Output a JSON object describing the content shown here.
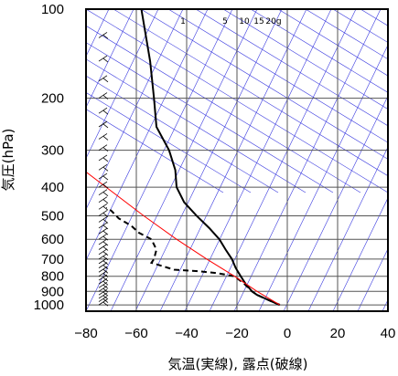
{
  "chart_data": {
    "type": "line",
    "subtype": "skew-t log-p sounding diagram",
    "xlabel": "気温(実線), 露点(破線)",
    "ylabel": "気圧(hPa)",
    "xlim": [
      -80,
      40
    ],
    "ylim": [
      1050,
      100
    ],
    "yscale": "log",
    "x_ticks": [
      "−80",
      "−60",
      "−40",
      "−20",
      "0",
      "20",
      "40"
    ],
    "x_tick_values": [
      -80,
      -60,
      -40,
      -20,
      0,
      20,
      40
    ],
    "y_ticks": [
      "100",
      "200",
      "300",
      "400",
      "500",
      "600",
      "700",
      "800",
      "900",
      "1000"
    ],
    "y_tick_values": [
      100,
      200,
      300,
      400,
      500,
      600,
      700,
      800,
      900,
      1000
    ],
    "grid": true,
    "mixing_ratio_labels": [
      "1",
      "5",
      "10",
      "15",
      "20g"
    ],
    "series": [
      {
        "style": "solid",
        "color": "#000000",
        "points": [
          [
            1000,
            -3
          ],
          [
            975,
            -6
          ],
          [
            950,
            -9
          ],
          [
            925,
            -12
          ],
          [
            900,
            -14
          ],
          [
            850,
            -16.5
          ],
          [
            800,
            -18.5
          ],
          [
            750,
            -20.5
          ],
          [
            700,
            -22
          ],
          [
            650,
            -24.5
          ],
          [
            600,
            -27
          ],
          [
            550,
            -31
          ],
          [
            500,
            -36
          ],
          [
            450,
            -41
          ],
          [
            400,
            -44
          ],
          [
            350,
            -44.5
          ],
          [
            300,
            -47
          ],
          [
            250,
            -52
          ],
          [
            200,
            -53
          ],
          [
            150,
            -54.5
          ],
          [
            100,
            -58
          ]
        ]
      },
      {
        "style": "dashed",
        "color": "#000000",
        "points": [
          [
            1000,
            -3
          ],
          [
            975,
            -6
          ],
          [
            950,
            -9
          ],
          [
            925,
            -12
          ],
          [
            900,
            -14
          ],
          [
            850,
            -17
          ],
          [
            800,
            -21
          ],
          [
            780,
            -28
          ],
          [
            770,
            -35
          ],
          [
            760,
            -45
          ],
          [
            720,
            -54
          ],
          [
            700,
            -53
          ],
          [
            650,
            -52
          ],
          [
            600,
            -54
          ],
          [
            570,
            -59
          ],
          [
            540,
            -62
          ],
          [
            510,
            -67
          ],
          [
            480,
            -70
          ],
          [
            470,
            -72
          ]
        ]
      },
      {
        "style": "solid",
        "color": "#ff0000",
        "points": [
          [
            1000,
            -3
          ],
          [
            900,
            -12
          ],
          [
            800,
            -21
          ],
          [
            700,
            -32
          ],
          [
            600,
            -44
          ],
          [
            500,
            -57
          ],
          [
            400,
            -72
          ],
          [
            350,
            -81
          ]
        ]
      }
    ]
  }
}
